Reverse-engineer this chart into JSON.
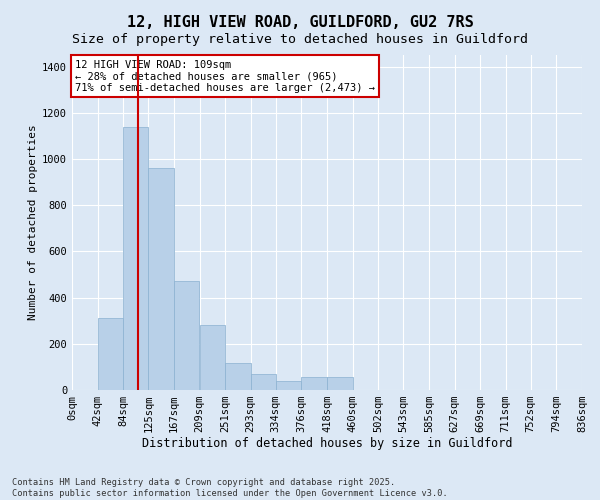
{
  "title_line1": "12, HIGH VIEW ROAD, GUILDFORD, GU2 7RS",
  "title_line2": "Size of property relative to detached houses in Guildford",
  "xlabel": "Distribution of detached houses by size in Guildford",
  "ylabel": "Number of detached properties",
  "bar_color": "#b8d0e8",
  "bar_edge_color": "#8ab0d0",
  "background_color": "#dce8f5",
  "grid_color": "#ffffff",
  "bins": [
    "0sqm",
    "42sqm",
    "84sqm",
    "125sqm",
    "167sqm",
    "209sqm",
    "251sqm",
    "293sqm",
    "334sqm",
    "376sqm",
    "418sqm",
    "460sqm",
    "502sqm",
    "543sqm",
    "585sqm",
    "627sqm",
    "669sqm",
    "711sqm",
    "752sqm",
    "794sqm",
    "836sqm"
  ],
  "bin_edges": [
    0,
    42,
    84,
    125,
    167,
    209,
    251,
    293,
    334,
    376,
    418,
    460,
    502,
    543,
    585,
    627,
    669,
    711,
    752,
    794,
    836
  ],
  "bar_heights": [
    0,
    310,
    1140,
    960,
    470,
    280,
    115,
    70,
    40,
    55,
    55,
    0,
    0,
    0,
    0,
    0,
    0,
    0,
    0,
    0
  ],
  "property_size": 109,
  "property_line_color": "#cc0000",
  "ylim": [
    0,
    1450
  ],
  "yticks": [
    0,
    200,
    400,
    600,
    800,
    1000,
    1200,
    1400
  ],
  "annotation_text": "12 HIGH VIEW ROAD: 109sqm\n← 28% of detached houses are smaller (965)\n71% of semi-detached houses are larger (2,473) →",
  "annotation_box_color": "#ffffff",
  "annotation_box_edge": "#cc0000",
  "annotation_fontsize": 7.5,
  "footnote": "Contains HM Land Registry data © Crown copyright and database right 2025.\nContains public sector information licensed under the Open Government Licence v3.0.",
  "title_fontsize": 11,
  "subtitle_fontsize": 9.5,
  "xlabel_fontsize": 8.5,
  "ylabel_fontsize": 8,
  "tick_fontsize": 7.5
}
